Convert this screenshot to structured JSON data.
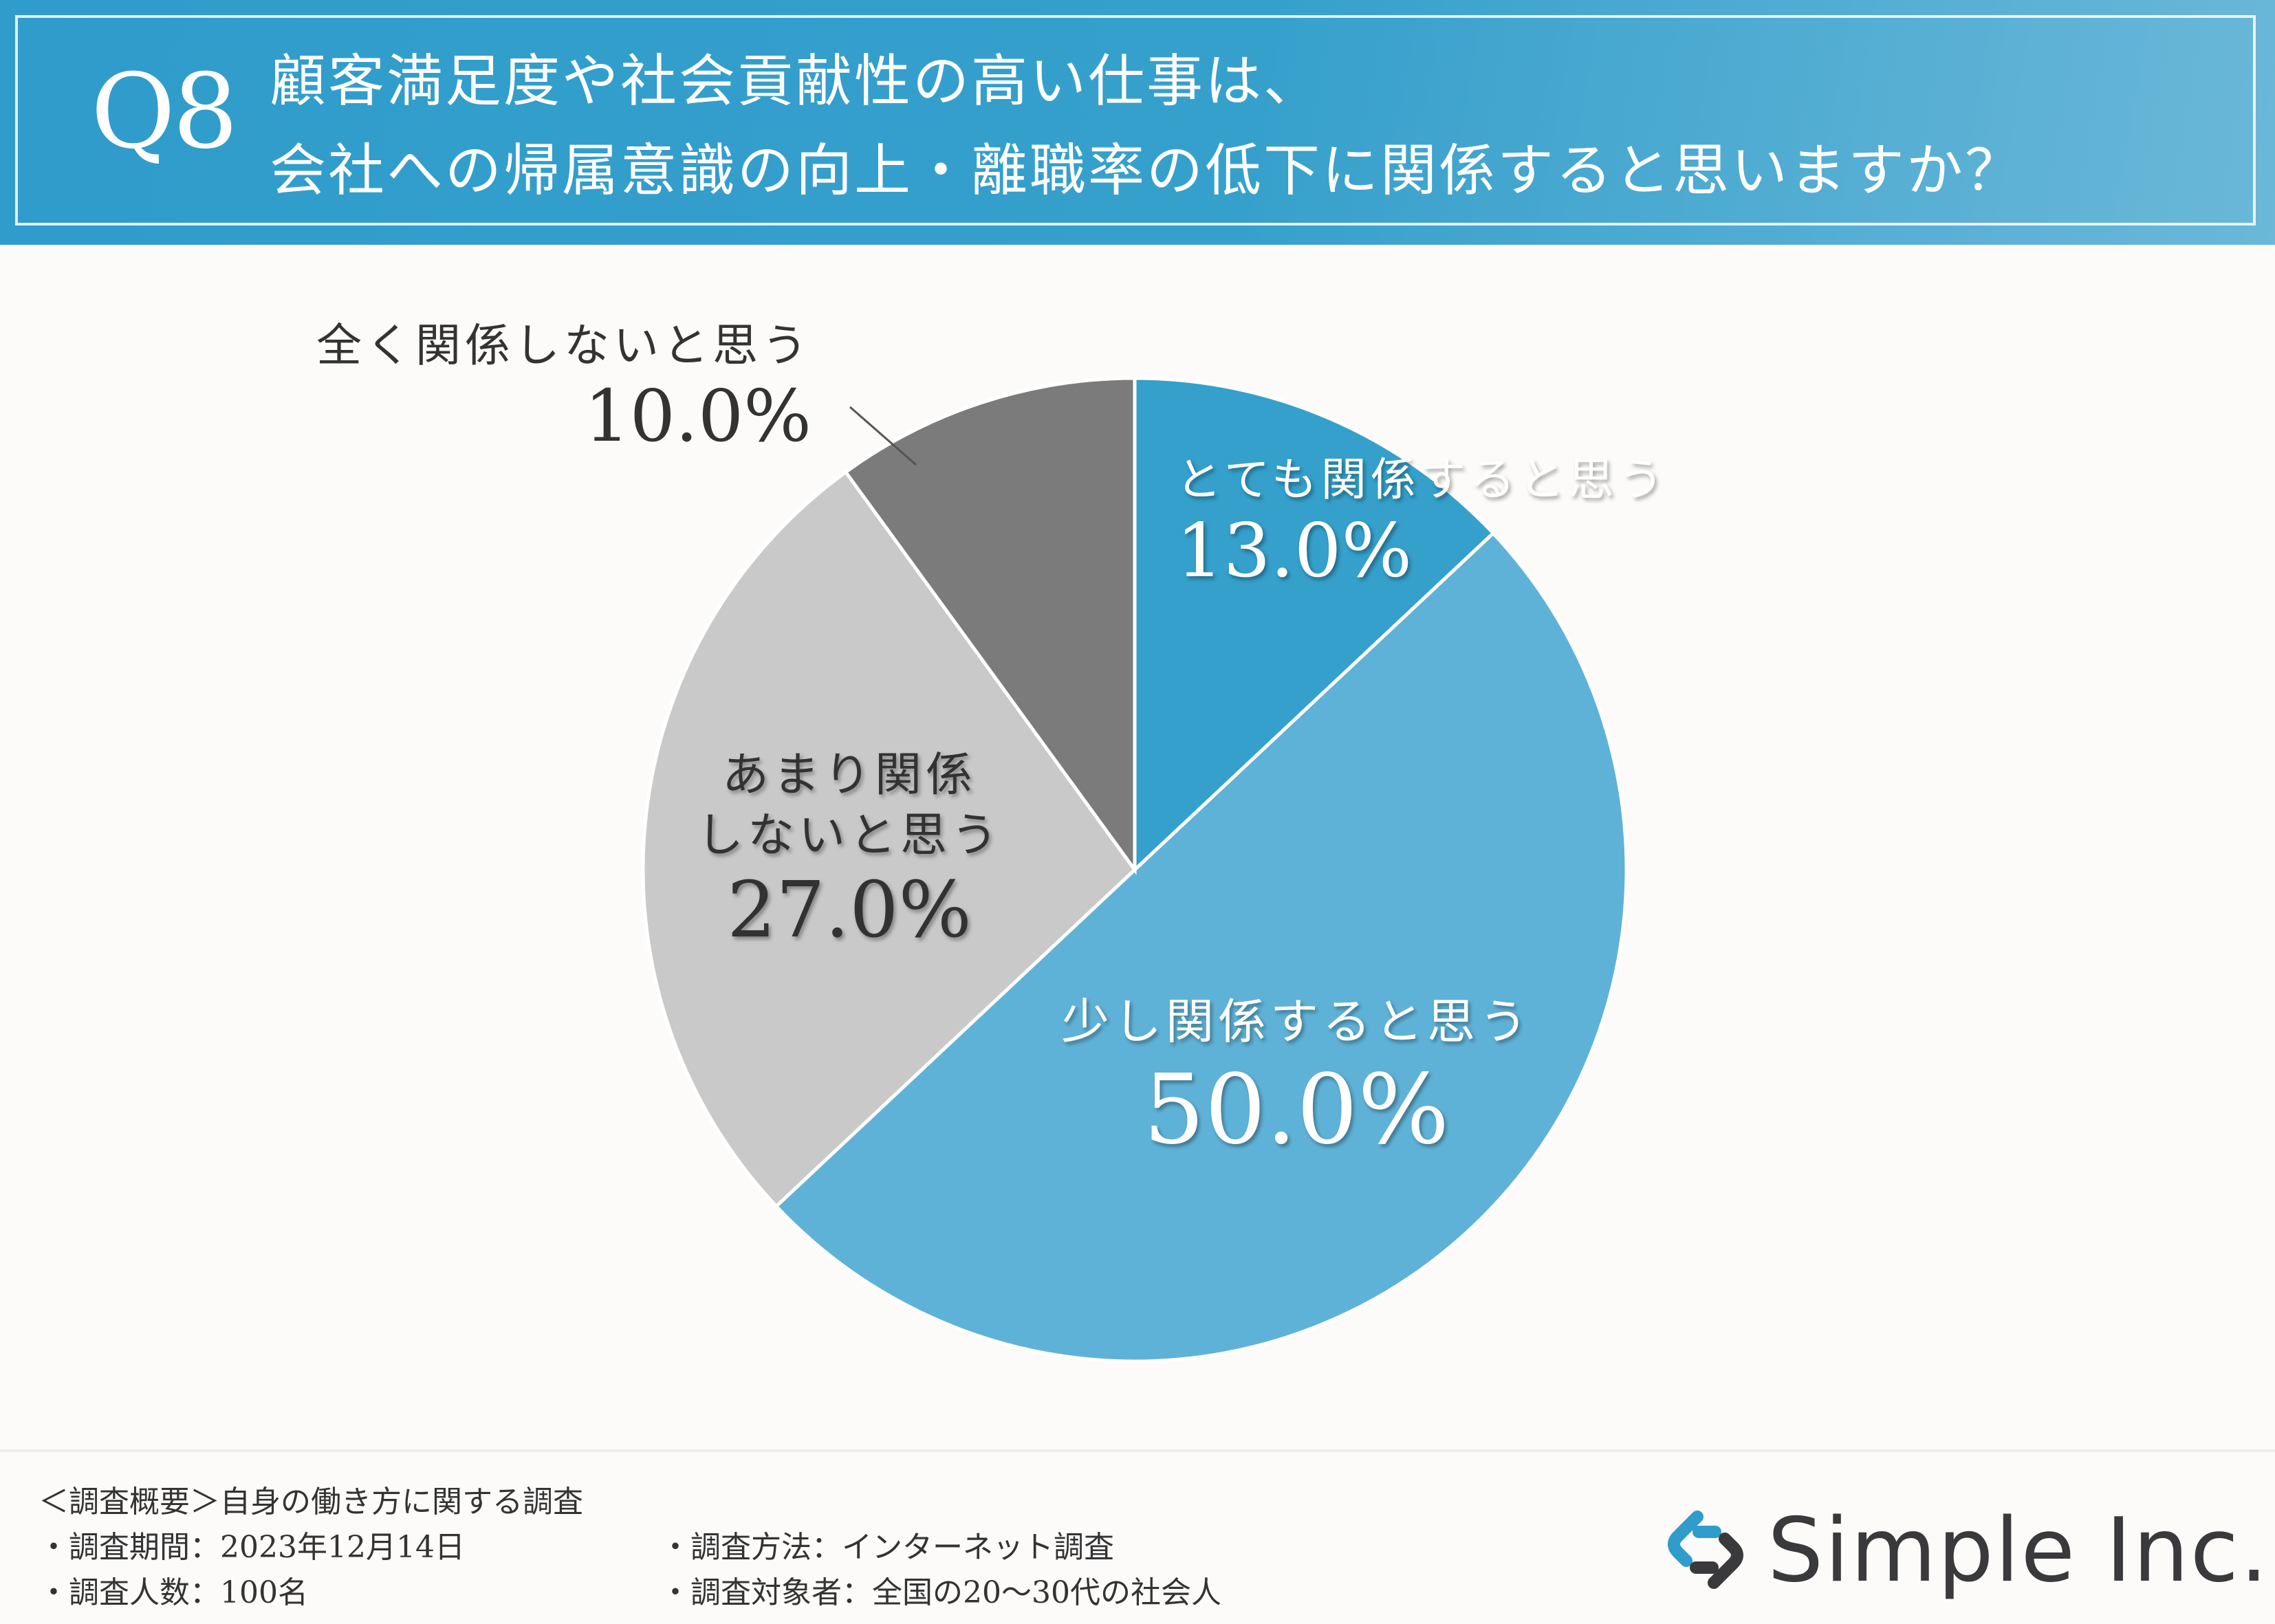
{
  "question": {
    "number": "Q8",
    "line1": "顧客満足度や社会貢献性の高い仕事は、",
    "line2": "会社への帰属意識の向上・離職率の低下に関係すると思いますか？"
  },
  "chart_data": {
    "type": "pie",
    "title": "顧客満足度や社会貢献性の高い仕事は、会社への帰属意識の向上・離職率の低下に関係すると思いますか？",
    "slices": [
      {
        "label": "とても関係すると思う",
        "label_lines": [
          "とても関係すると思う"
        ],
        "value": 13.0,
        "value_text": "13.0%",
        "color": "#34a0cb",
        "text_color": "#ffffff"
      },
      {
        "label": "少し関係すると思う",
        "label_lines": [
          "少し関係すると思う"
        ],
        "value": 50.0,
        "value_text": "50.0%",
        "color": "#5fb2d7",
        "text_color": "#ffffff"
      },
      {
        "label": "あまり関係しないと思う",
        "label_lines": [
          "あまり関係",
          "しないと思う"
        ],
        "value": 27.0,
        "value_text": "27.0%",
        "color": "#c9c9c9",
        "text_color": "#333333"
      },
      {
        "label": "全く関係しないと思う",
        "label_lines": [
          "全く関係しないと思う"
        ],
        "value": 10.0,
        "value_text": "10.0%",
        "color": "#7b7b7b",
        "text_color": "#333333"
      }
    ],
    "start_angle": "12 o'clock",
    "direction": "clockwise",
    "legend": "none"
  },
  "footer": {
    "summary": "＜調査概要＞自身の働き方に関する調査",
    "period": "・調査期間：2023年12月14日",
    "method": "・調査方法：インターネット調査",
    "count": "・調査人数：100名",
    "target": "・調査対象者：全国の20～30代の社会人"
  },
  "brand": {
    "name": "Simple Inc.",
    "logo_icon": "chain-link-s-icon",
    "logo_colors": [
      "#2f9ccb",
      "#3a3a3c"
    ]
  }
}
